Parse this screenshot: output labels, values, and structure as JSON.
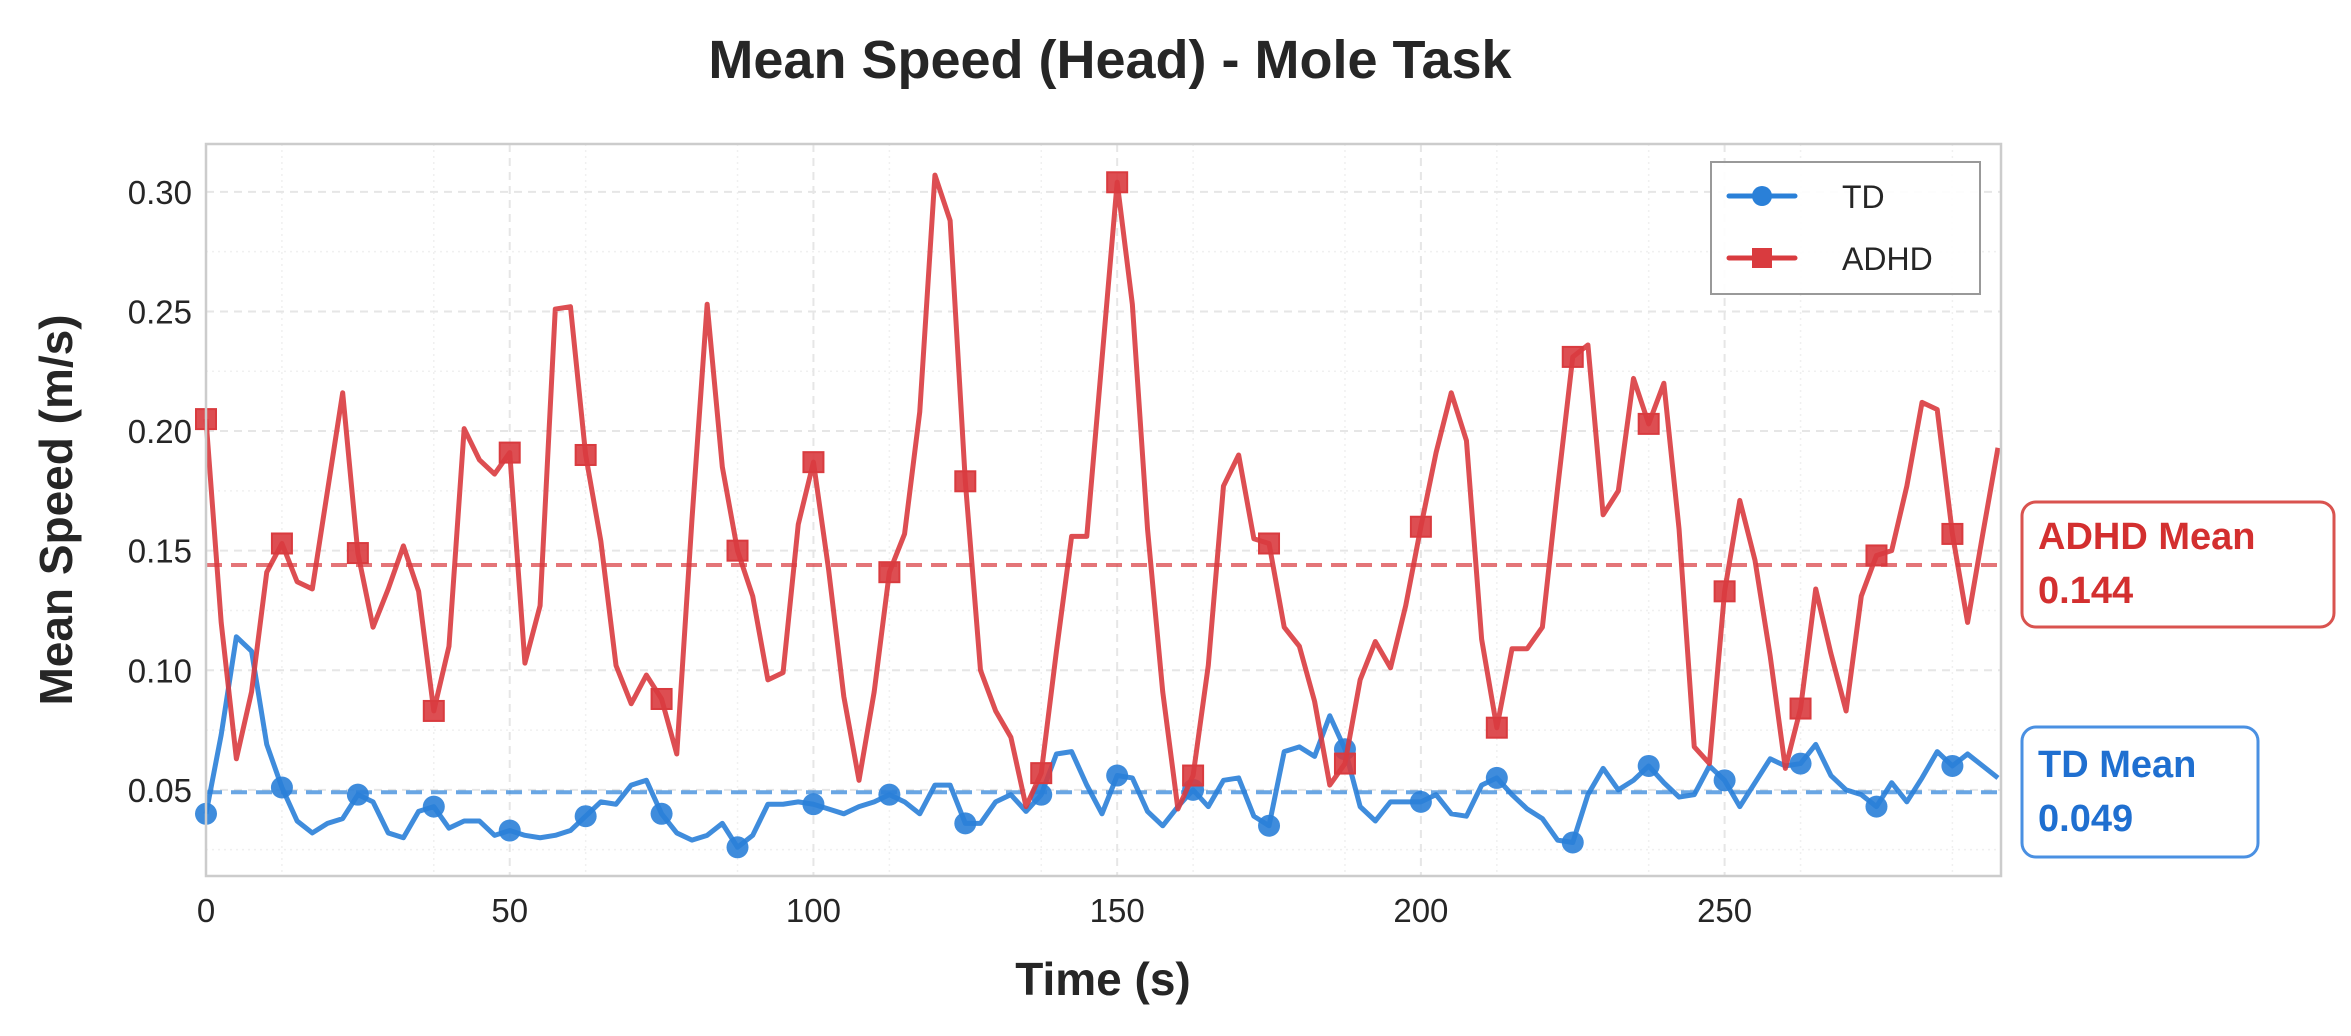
{
  "chart_data": {
    "type": "line",
    "title": "Mean Speed (Head) - Mole Task",
    "xlabel": "Time (s)",
    "ylabel": "Mean Speed (m/s)",
    "xlim": [
      0,
      295.5
    ],
    "ylim": [
      0.014,
      0.32
    ],
    "x_step": 2.5,
    "x_ticks": [
      "0",
      "50",
      "100",
      "150",
      "200",
      "250"
    ],
    "x_tick_values": [
      0,
      50,
      100,
      150,
      200,
      250
    ],
    "y_ticks": [
      "0.05",
      "0.10",
      "0.15",
      "0.20",
      "0.25",
      "0.30"
    ],
    "y_tick_values": [
      0.05,
      0.1,
      0.15,
      0.2,
      0.25,
      0.3
    ],
    "grid": true,
    "legend_position": "top-right",
    "marker_every": 5,
    "series": [
      {
        "name": "TD",
        "color": "#2a80d8",
        "marker": "circle",
        "values": [
          0.04,
          0.073,
          0.114,
          0.108,
          0.069,
          0.051,
          0.037,
          0.032,
          0.036,
          0.038,
          0.048,
          0.045,
          0.032,
          0.03,
          0.041,
          0.043,
          0.034,
          0.037,
          0.037,
          0.031,
          0.033,
          0.031,
          0.03,
          0.031,
          0.033,
          0.039,
          0.045,
          0.044,
          0.052,
          0.054,
          0.04,
          0.032,
          0.029,
          0.031,
          0.036,
          0.026,
          0.031,
          0.044,
          0.044,
          0.045,
          0.044,
          0.042,
          0.04,
          0.043,
          0.045,
          0.048,
          0.045,
          0.04,
          0.052,
          0.052,
          0.036,
          0.036,
          0.045,
          0.048,
          0.041,
          0.048,
          0.065,
          0.066,
          0.052,
          0.04,
          0.056,
          0.055,
          0.041,
          0.035,
          0.043,
          0.05,
          0.043,
          0.054,
          0.055,
          0.039,
          0.035,
          0.066,
          0.068,
          0.064,
          0.081,
          0.067,
          0.043,
          0.037,
          0.045,
          0.045,
          0.045,
          0.048,
          0.04,
          0.039,
          0.052,
          0.055,
          0.048,
          0.042,
          0.038,
          0.029,
          0.028,
          0.048,
          0.059,
          0.05,
          0.054,
          0.06,
          0.053,
          0.047,
          0.048,
          0.06,
          0.054,
          0.043,
          0.053,
          0.063,
          0.06,
          0.061,
          0.069,
          0.056,
          0.05,
          0.048,
          0.043,
          0.053,
          0.045,
          0.055,
          0.066,
          0.06,
          0.065,
          0.06,
          0.055
        ]
      },
      {
        "name": "ADHD",
        "color": "#d93b3f",
        "marker": "square",
        "values": [
          0.205,
          0.12,
          0.063,
          0.091,
          0.141,
          0.153,
          0.137,
          0.134,
          0.175,
          0.216,
          0.149,
          0.118,
          0.134,
          0.152,
          0.133,
          0.083,
          0.11,
          0.201,
          0.188,
          0.182,
          0.191,
          0.103,
          0.127,
          0.251,
          0.252,
          0.19,
          0.154,
          0.102,
          0.086,
          0.098,
          0.088,
          0.065,
          0.163,
          0.253,
          0.185,
          0.15,
          0.131,
          0.096,
          0.099,
          0.161,
          0.187,
          0.142,
          0.089,
          0.054,
          0.091,
          0.141,
          0.157,
          0.208,
          0.307,
          0.288,
          0.179,
          0.1,
          0.083,
          0.072,
          0.043,
          0.057,
          0.108,
          0.156,
          0.156,
          0.23,
          0.304,
          0.253,
          0.159,
          0.091,
          0.042,
          0.056,
          0.102,
          0.177,
          0.19,
          0.155,
          0.153,
          0.118,
          0.11,
          0.087,
          0.052,
          0.061,
          0.096,
          0.112,
          0.101,
          0.127,
          0.16,
          0.191,
          0.216,
          0.196,
          0.113,
          0.076,
          0.109,
          0.109,
          0.118,
          0.176,
          0.231,
          0.236,
          0.165,
          0.175,
          0.222,
          0.203,
          0.22,
          0.159,
          0.068,
          0.061,
          0.133,
          0.171,
          0.146,
          0.106,
          0.059,
          0.084,
          0.134,
          0.107,
          0.083,
          0.131,
          0.148,
          0.15,
          0.177,
          0.212,
          0.209,
          0.157,
          0.12,
          0.157,
          0.193
        ]
      }
    ],
    "reference_lines": [
      {
        "series": "ADHD",
        "value": 0.144,
        "label": "ADHD Mean",
        "value_label": "0.144",
        "color": "#d32f2f"
      },
      {
        "series": "TD",
        "value": 0.049,
        "label": "TD Mean",
        "value_label": "0.049",
        "color": "#1f6fd0"
      }
    ]
  }
}
